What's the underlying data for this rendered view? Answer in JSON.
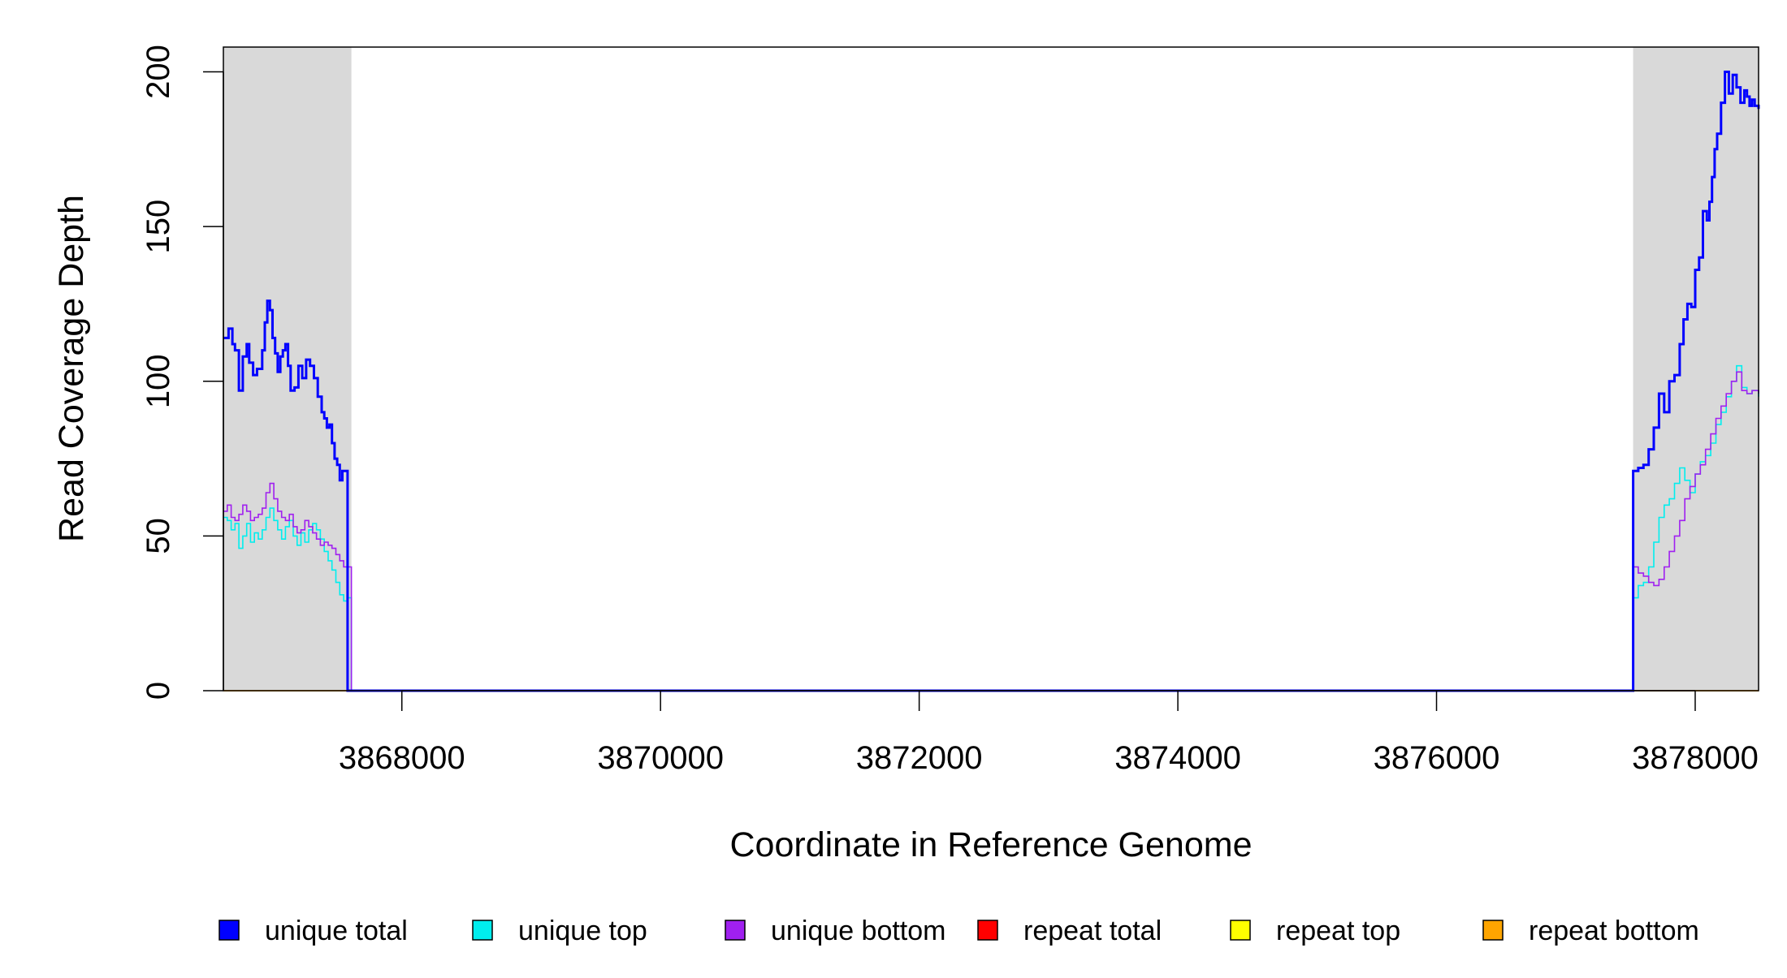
{
  "chart_data": {
    "type": "line",
    "title": "",
    "xlabel": "Coordinate in Reference Genome",
    "ylabel": "Read Coverage Depth",
    "xlim": [
      3866620,
      3878490
    ],
    "ylim": [
      0,
      208
    ],
    "x_ticks": [
      3868000,
      3870000,
      3872000,
      3874000,
      3876000,
      3878000
    ],
    "x_tick_labels": [
      "3868000",
      "3870000",
      "3872000",
      "3874000",
      "3876000",
      "3878000"
    ],
    "y_ticks": [
      0,
      50,
      100,
      150,
      200
    ],
    "y_tick_labels": [
      "0",
      "50",
      "100",
      "150",
      "200"
    ],
    "grid": false,
    "legend_position": "bottom",
    "shaded_regions": [
      {
        "x_start": 3866620,
        "x_end": 3867610,
        "color": "#d9d9d9"
      },
      {
        "x_start": 3877520,
        "x_end": 3878490,
        "color": "#d9d9d9"
      }
    ],
    "series": [
      {
        "name": "unique total",
        "color": "#0000ff",
        "width": 3,
        "x": [
          3866620,
          3866660,
          3866690,
          3866710,
          3866740,
          3866770,
          3866800,
          3866820,
          3866850,
          3866880,
          3866900,
          3866920,
          3866940,
          3866960,
          3866980,
          3867000,
          3867020,
          3867040,
          3867060,
          3867080,
          3867100,
          3867120,
          3867140,
          3867170,
          3867200,
          3867230,
          3867260,
          3867290,
          3867320,
          3867350,
          3867380,
          3867400,
          3867420,
          3867440,
          3867460,
          3867480,
          3867500,
          3867520,
          3867540,
          3867560,
          3867580,
          3867600,
          3867610,
          3867640,
          3877510,
          3877520,
          3877560,
          3877600,
          3877640,
          3877680,
          3877720,
          3877760,
          3877800,
          3877840,
          3877880,
          3877910,
          3877940,
          3877970,
          3878000,
          3878030,
          3878060,
          3878090,
          3878110,
          3878130,
          3878150,
          3878170,
          3878200,
          3878230,
          3878260,
          3878290,
          3878320,
          3878350,
          3878380,
          3878400,
          3878420,
          3878440,
          3878460,
          3878490
        ],
        "y": [
          114,
          117,
          112,
          110,
          97,
          108,
          112,
          106,
          102,
          104,
          104,
          110,
          119,
          126,
          123,
          114,
          109,
          103,
          108,
          110,
          112,
          105,
          97,
          98,
          105,
          101,
          107,
          105,
          101,
          95,
          90,
          88,
          85,
          86,
          80,
          75,
          73,
          68,
          71,
          71,
          0,
          0,
          0,
          0,
          0,
          71,
          72,
          73,
          78,
          85,
          96,
          90,
          100,
          102,
          112,
          120,
          125,
          124,
          136,
          140,
          155,
          152,
          158,
          166,
          175,
          180,
          190,
          200,
          193,
          199,
          195,
          190,
          194,
          192,
          189,
          191,
          189,
          188
        ]
      },
      {
        "name": "unique top",
        "color": "#00eeee",
        "width": 1.6,
        "x": [
          3866620,
          3866650,
          3866680,
          3866710,
          3866740,
          3866770,
          3866800,
          3866830,
          3866860,
          3866890,
          3866920,
          3866950,
          3866980,
          3867010,
          3867040,
          3867070,
          3867100,
          3867130,
          3867160,
          3867190,
          3867220,
          3867250,
          3867280,
          3867310,
          3867340,
          3867370,
          3867400,
          3867430,
          3867460,
          3867490,
          3867520,
          3867550,
          3867580,
          3867600,
          3867610,
          3867640,
          3877510,
          3877520,
          3877560,
          3877600,
          3877640,
          3877680,
          3877720,
          3877760,
          3877800,
          3877840,
          3877880,
          3877920,
          3877960,
          3878000,
          3878040,
          3878080,
          3878120,
          3878160,
          3878200,
          3878240,
          3878280,
          3878320,
          3878360,
          3878400,
          3878440,
          3878490
        ],
        "y": [
          56,
          55,
          52,
          54,
          46,
          50,
          54,
          48,
          51,
          49,
          52,
          56,
          59,
          55,
          52,
          49,
          53,
          55,
          50,
          47,
          51,
          48,
          52,
          54,
          52,
          49,
          45,
          42,
          39,
          35,
          31,
          29,
          30,
          30,
          0,
          0,
          0,
          30,
          34,
          35,
          40,
          48,
          56,
          60,
          62,
          67,
          72,
          68,
          64,
          70,
          74,
          76,
          80,
          86,
          90,
          95,
          100,
          105,
          98,
          96,
          97,
          95
        ]
      },
      {
        "name": "unique bottom",
        "color": "#a020f0",
        "width": 1.6,
        "x": [
          3866620,
          3866650,
          3866680,
          3866710,
          3866740,
          3866770,
          3866800,
          3866830,
          3866860,
          3866890,
          3866920,
          3866950,
          3866980,
          3867010,
          3867040,
          3867070,
          3867100,
          3867130,
          3867160,
          3867190,
          3867220,
          3867250,
          3867280,
          3867310,
          3867340,
          3867370,
          3867400,
          3867430,
          3867460,
          3867490,
          3867520,
          3867550,
          3867580,
          3867600,
          3867610,
          3867640,
          3877510,
          3877520,
          3877560,
          3877600,
          3877640,
          3877680,
          3877720,
          3877760,
          3877800,
          3877840,
          3877880,
          3877920,
          3877960,
          3878000,
          3878040,
          3878080,
          3878120,
          3878160,
          3878200,
          3878240,
          3878280,
          3878320,
          3878360,
          3878400,
          3878440,
          3878490
        ],
        "y": [
          58,
          60,
          56,
          55,
          57,
          60,
          58,
          55,
          56,
          57,
          59,
          64,
          67,
          62,
          58,
          56,
          55,
          57,
          53,
          51,
          52,
          55,
          53,
          51,
          49,
          47,
          48,
          47,
          46,
          44,
          42,
          40,
          40,
          40,
          0,
          0,
          0,
          40,
          38,
          37,
          35,
          34,
          36,
          40,
          45,
          50,
          55,
          62,
          66,
          70,
          73,
          78,
          83,
          88,
          92,
          96,
          100,
          103,
          97,
          96,
          97,
          96
        ]
      },
      {
        "name": "repeat total",
        "color": "#ff0000",
        "width": 1.6,
        "x": [
          3866620,
          3878490
        ],
        "y": [
          0,
          0
        ]
      },
      {
        "name": "repeat top",
        "color": "#ffff00",
        "width": 1.6,
        "x": [
          3866620,
          3878490
        ],
        "y": [
          0,
          0
        ]
      },
      {
        "name": "repeat bottom",
        "color": "#ffa500",
        "width": 1.6,
        "x": [
          3866620,
          3878490
        ],
        "y": [
          0,
          0
        ]
      }
    ]
  }
}
